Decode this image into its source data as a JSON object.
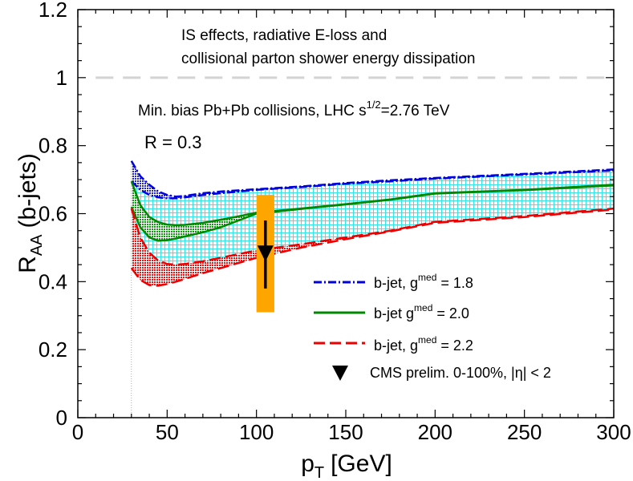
{
  "chart_data": {
    "type": "line",
    "xlabel": "p",
    "xlabel_sub": "T",
    "xlabel_unit": "[GeV]",
    "ylabel_main": "R",
    "ylabel_sub": "AA",
    "ylabel_rest": "(b-jets)",
    "xlim": [
      0,
      300
    ],
    "ylim": [
      0,
      1.2
    ],
    "x_ticks": [
      "0",
      "50",
      "100",
      "150",
      "200",
      "250",
      "300"
    ],
    "y_ticks": [
      "0",
      "0.2",
      "0.4",
      "0.6",
      "0.8",
      "1",
      "1.2"
    ],
    "reference_line": {
      "y": 1,
      "style": "dashed",
      "color": "#d3d3d3"
    },
    "annotations": {
      "line1": "IS effects, radiative E-loss and",
      "line2": "collisional parton shower energy dissipation",
      "collision_main": "Min. bias Pb+Pb collisions, LHC s",
      "collision_sup": "1/2",
      "collision_rest": "=2.76 TeV",
      "radius": "R = 0.3"
    },
    "series": [
      {
        "name_main": "b-jet, g",
        "name_sup": "med",
        "name_rest": " = 1.8",
        "color": "#0000dd",
        "style": "dash-dot",
        "x": [
          30,
          35,
          40,
          45,
          50,
          55,
          60,
          70,
          80,
          100,
          125,
          150,
          175,
          200,
          250,
          300
        ],
        "upper": [
          0.755,
          0.71,
          0.685,
          0.665,
          0.655,
          0.65,
          0.652,
          0.66,
          0.665,
          0.672,
          0.68,
          0.69,
          0.698,
          0.705,
          0.717,
          0.73
        ],
        "lower": [
          0.695,
          0.67,
          0.655,
          0.648,
          0.645,
          0.645,
          0.648,
          0.655,
          0.66,
          0.67,
          0.678,
          0.688,
          0.695,
          0.703,
          0.715,
          0.727
        ]
      },
      {
        "name_main": "b-jet  g",
        "name_sup": "med",
        "name_rest": " = 2.0",
        "color": "#008800",
        "style": "solid",
        "x": [
          30,
          35,
          40,
          45,
          50,
          55,
          60,
          70,
          80,
          90,
          100,
          125,
          150,
          175,
          200,
          250,
          300
        ],
        "upper": [
          0.695,
          0.625,
          0.59,
          0.575,
          0.568,
          0.566,
          0.567,
          0.573,
          0.582,
          0.592,
          0.603,
          0.615,
          0.628,
          0.642,
          0.66,
          0.67,
          0.685
        ],
        "lower": [
          0.62,
          0.56,
          0.53,
          0.52,
          0.522,
          0.527,
          0.533,
          0.545,
          0.56,
          0.58,
          0.6,
          0.614,
          0.627,
          0.641,
          0.659,
          0.669,
          0.683
        ]
      },
      {
        "name_main": "b-jet, g",
        "name_sup": "med",
        "name_rest": " = 2.2",
        "color": "#ee0000",
        "style": "dashed",
        "x": [
          30,
          35,
          40,
          45,
          50,
          55,
          60,
          70,
          80,
          100,
          125,
          150,
          175,
          200,
          250,
          300
        ],
        "upper": [
          0.615,
          0.53,
          0.485,
          0.462,
          0.452,
          0.45,
          0.452,
          0.46,
          0.47,
          0.492,
          0.51,
          0.53,
          0.55,
          0.576,
          0.593,
          0.615
        ],
        "lower": [
          0.44,
          0.405,
          0.39,
          0.388,
          0.393,
          0.4,
          0.408,
          0.425,
          0.44,
          0.47,
          0.5,
          0.525,
          0.548,
          0.573,
          0.59,
          0.612
        ]
      }
    ],
    "band_fill_color": "#66ffff",
    "data_points": {
      "name": "CMS prelim. 0-100%, |η| < 2",
      "x": 105,
      "y": 0.485,
      "stat_err": [
        0.38,
        0.58
      ],
      "sys_box": {
        "x_range": [
          100,
          110
        ],
        "y_range": [
          0.31,
          0.655
        ]
      },
      "box_color": "#ffa500"
    },
    "legend_position": "bottom-right",
    "grid": false
  }
}
